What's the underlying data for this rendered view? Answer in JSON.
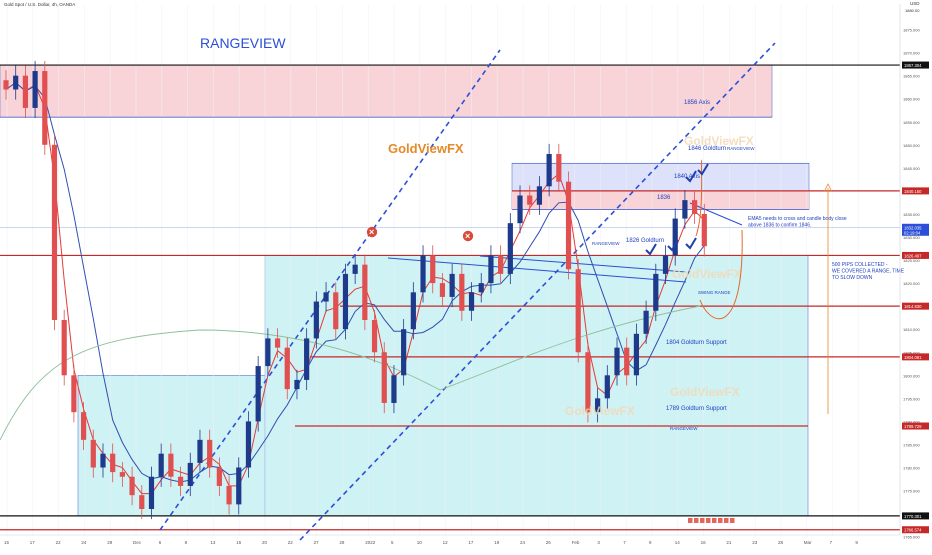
{
  "header": {
    "symbol_text": "Gold Spot / U.S. Dollar, 4h, OANDA",
    "currency": "USD",
    "top_price": "1880.00"
  },
  "annotations": {
    "title": "RANGEVIEW",
    "brand": "GoldViewFX",
    "ema_note": "EMA5 needs to cross and candle body close above 1836 to confirm 1846.",
    "pips_note": "500 PIPS COLLECTED - WE COVERED A RANGE, TIME TO SLOW DOWN",
    "swing_range": "SWING RANGE",
    "rangeview_small": "RANGEVIEW",
    "watermarks": [
      "GoldViewFX",
      "GoldViewFX",
      "GoldViewFX",
      "GoldViewFX"
    ]
  },
  "colors": {
    "red_line": "#c62828",
    "blue_line": "#1e3fbf",
    "black_line": "#111111",
    "cyan_zone": "#cff2f4",
    "pink_zone": "#f8d4d9",
    "orange_text": "#e58a2a",
    "candle_red": "#e05050",
    "candle_blue": "#1e3a8a",
    "ema_red": "#e53935",
    "sma_blue": "#2f4fb0",
    "long_green": "#8fbf9a"
  },
  "chart_data": {
    "type": "candlestick",
    "symbol": "Gold Spot / U.S. Dollar",
    "timeframe": "4h",
    "y_range": [
      1765,
      1880
    ],
    "price_ticks": [
      "1875.000",
      "1870.000",
      "1865.000",
      "1860.000",
      "1855.000",
      "1850.000",
      "1845.000",
      "1840.000",
      "1835.000",
      "1830.000",
      "1825.000",
      "1820.000",
      "1815.000",
      "1810.000",
      "1805.000",
      "1800.000",
      "1795.000",
      "1790.000",
      "1785.000",
      "1780.000",
      "1775.000",
      "1770.000",
      "1765.000"
    ],
    "time_ticks": [
      "15",
      "17",
      "22",
      "24",
      "29",
      "Dec",
      "6",
      "8",
      "13",
      "15",
      "20",
      "22",
      "27",
      "29",
      "2022",
      "5",
      "10",
      "12",
      "17",
      "19",
      "24",
      "26",
      "Feb",
      "3",
      "7",
      "9",
      "14",
      "16",
      "21",
      "23",
      "28",
      "Mar",
      "7",
      "9"
    ],
    "levels": [
      {
        "price": 1867.3,
        "label": "1867.3",
        "tag": "1867.304",
        "color": "black"
      },
      {
        "price": 1856.0,
        "label": "1856 Axis",
        "color": "blue"
      },
      {
        "price": 1846.0,
        "label": "1846 Goldturn",
        "color": "blue"
      },
      {
        "price": 1840.0,
        "label": "1840 Axis",
        "tag": "1840.150",
        "color": "red"
      },
      {
        "price": 1836.0,
        "label": "1836",
        "color": "blue"
      },
      {
        "price": 1826.0,
        "label": "1826 Goldturn",
        "tag": "1826.497",
        "color": "red"
      },
      {
        "price": 1815.0,
        "label": "1815",
        "tag": "1814.830",
        "color": "red"
      },
      {
        "price": 1804.0,
        "label": "1804 Goldturn Support",
        "tag": "1804.081",
        "color": "red"
      },
      {
        "price": 1789.0,
        "label": "1789 Goldturn Support",
        "tag": "1789.729",
        "color": "red"
      },
      {
        "price": 1769.5,
        "label": "1769.5",
        "tag": "1770.301",
        "color": "black"
      },
      {
        "price": 1766.5,
        "label": "1766.5",
        "tag": "1766.574",
        "color": "red"
      }
    ],
    "current_price_tags": [
      "1832.035",
      "02:19:04"
    ],
    "close": [
      1862,
      1865,
      1858,
      1866,
      1850,
      1812,
      1800,
      1792,
      1786,
      1780,
      1783,
      1779,
      1778,
      1774,
      1771,
      1778,
      1783,
      1778,
      1776,
      1781,
      1786,
      1780,
      1776,
      1772,
      1780,
      1790,
      1802,
      1808,
      1806,
      1797,
      1799,
      1808,
      1816,
      1818,
      1810,
      1822,
      1824,
      1812,
      1805,
      1794,
      1800,
      1810,
      1818,
      1826,
      1820,
      1817,
      1822,
      1814,
      1818,
      1820,
      1826,
      1822,
      1833,
      1839,
      1837,
      1841,
      1848,
      1842,
      1823,
      1805,
      1792,
      1795,
      1800,
      1806,
      1800,
      1809,
      1814,
      1822,
      1826,
      1834,
      1838,
      1835,
      1828
    ]
  }
}
